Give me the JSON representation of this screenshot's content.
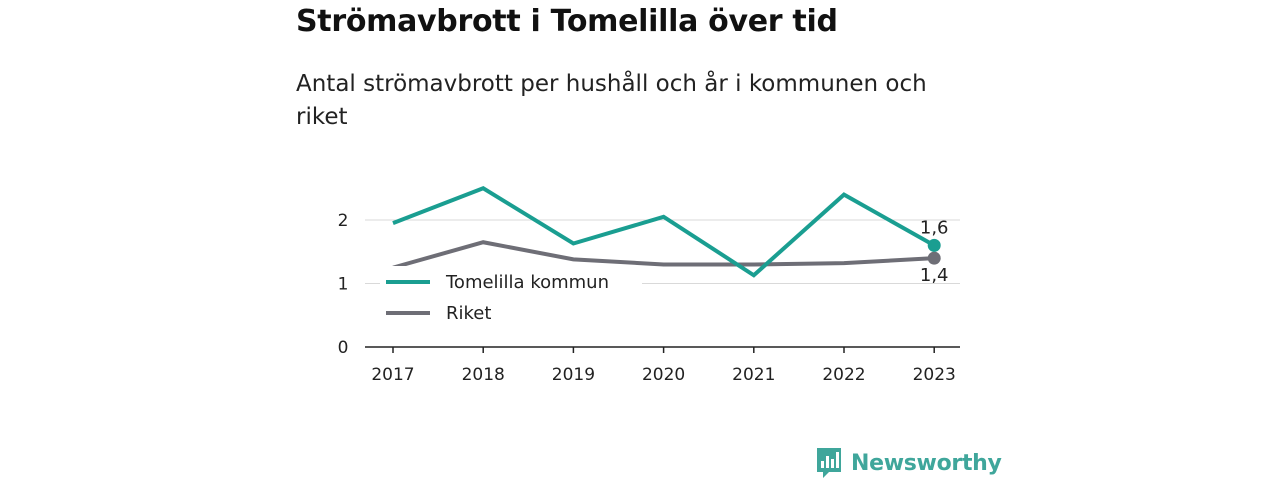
{
  "header": {
    "title": "Strömavbrott i Tomelilla över tid",
    "subtitle": "Antal strömavbrott per hushåll och år i kommunen och riket"
  },
  "brand": {
    "name": "Newsworthy",
    "icon": "newsworthy-logo-icon",
    "color": "#3fa69b"
  },
  "chart_data": {
    "type": "line",
    "x": [
      "2017",
      "2018",
      "2019",
      "2020",
      "2021",
      "2022",
      "2023"
    ],
    "series": [
      {
        "name": "Tomelilla kommun",
        "color": "#1a9e91",
        "values": [
          1.95,
          2.5,
          1.63,
          2.05,
          1.13,
          2.4,
          1.6
        ],
        "end_label": "1,6"
      },
      {
        "name": "Riket",
        "color": "#6e6e76",
        "values": [
          1.25,
          1.65,
          1.38,
          1.3,
          1.3,
          1.32,
          1.4
        ],
        "end_label": "1,4"
      }
    ],
    "yticks": [
      {
        "value": 0,
        "label": "0"
      },
      {
        "value": 1,
        "label": "1"
      },
      {
        "value": 2,
        "label": "2"
      }
    ],
    "ylim": [
      0,
      2.6
    ],
    "grid": true,
    "legend_position": "left, inside plot"
  }
}
